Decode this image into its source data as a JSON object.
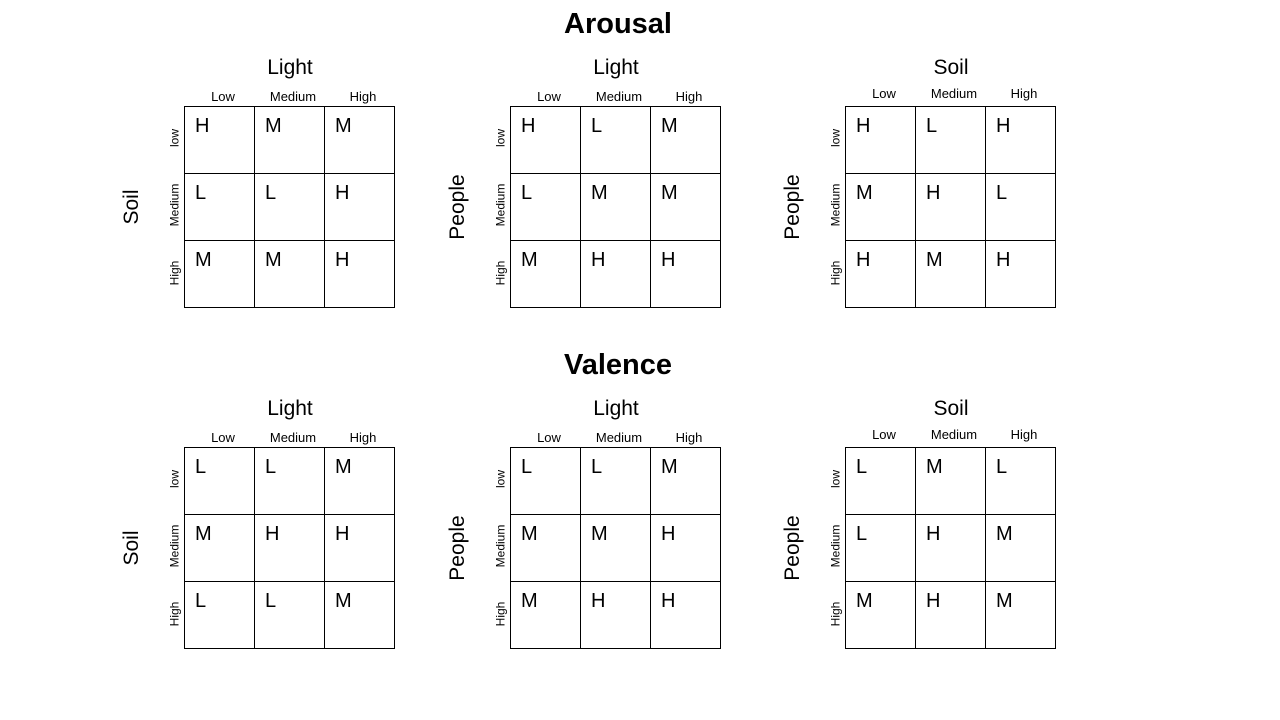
{
  "sections": [
    {
      "title": "Arousal",
      "grids": [
        {
          "col_axis": "Light",
          "col_labels": [
            "Low",
            "Medium",
            "High"
          ],
          "row_axis": "Soil",
          "row_labels": [
            "low",
            "Medium",
            "High"
          ],
          "cells": [
            [
              "H",
              "M",
              "M"
            ],
            [
              "L",
              "L",
              "H"
            ],
            [
              "M",
              "M",
              "H"
            ]
          ]
        },
        {
          "col_axis": "Light",
          "col_labels": [
            "Low",
            "Medium",
            "High"
          ],
          "row_axis": "People",
          "row_labels": [
            "low",
            "Medium",
            "High"
          ],
          "cells": [
            [
              "H",
              "L",
              "M"
            ],
            [
              "L",
              "M",
              "M"
            ],
            [
              "M",
              "H",
              "H"
            ]
          ]
        },
        {
          "col_axis": "Soil",
          "col_labels": [
            "Low",
            "Medium",
            "High"
          ],
          "row_axis": "People",
          "row_labels": [
            "low",
            "Medium",
            "High"
          ],
          "cells": [
            [
              "H",
              "L",
              "H"
            ],
            [
              "M",
              "H",
              "L"
            ],
            [
              "H",
              "M",
              "H"
            ]
          ]
        }
      ]
    },
    {
      "title": "Valence",
      "grids": [
        {
          "col_axis": "Light",
          "col_labels": [
            "Low",
            "Medium",
            "High"
          ],
          "row_axis": "Soil",
          "row_labels": [
            "low",
            "Medium",
            "High"
          ],
          "cells": [
            [
              "L",
              "L",
              "M"
            ],
            [
              "M",
              "H",
              "H"
            ],
            [
              "L",
              "L",
              "M"
            ]
          ]
        },
        {
          "col_axis": "Light",
          "col_labels": [
            "Low",
            "Medium",
            "High"
          ],
          "row_axis": "People",
          "row_labels": [
            "low",
            "Medium",
            "High"
          ],
          "cells": [
            [
              "L",
              "L",
              "M"
            ],
            [
              "M",
              "M",
              "H"
            ],
            [
              "M",
              "H",
              "H"
            ]
          ]
        },
        {
          "col_axis": "Soil",
          "col_labels": [
            "Low",
            "Medium",
            "High"
          ],
          "row_axis": "People",
          "row_labels": [
            "low",
            "Medium",
            "High"
          ],
          "cells": [
            [
              "L",
              "M",
              "L"
            ],
            [
              "L",
              "H",
              "M"
            ],
            [
              "M",
              "H",
              "M"
            ]
          ]
        }
      ]
    }
  ]
}
